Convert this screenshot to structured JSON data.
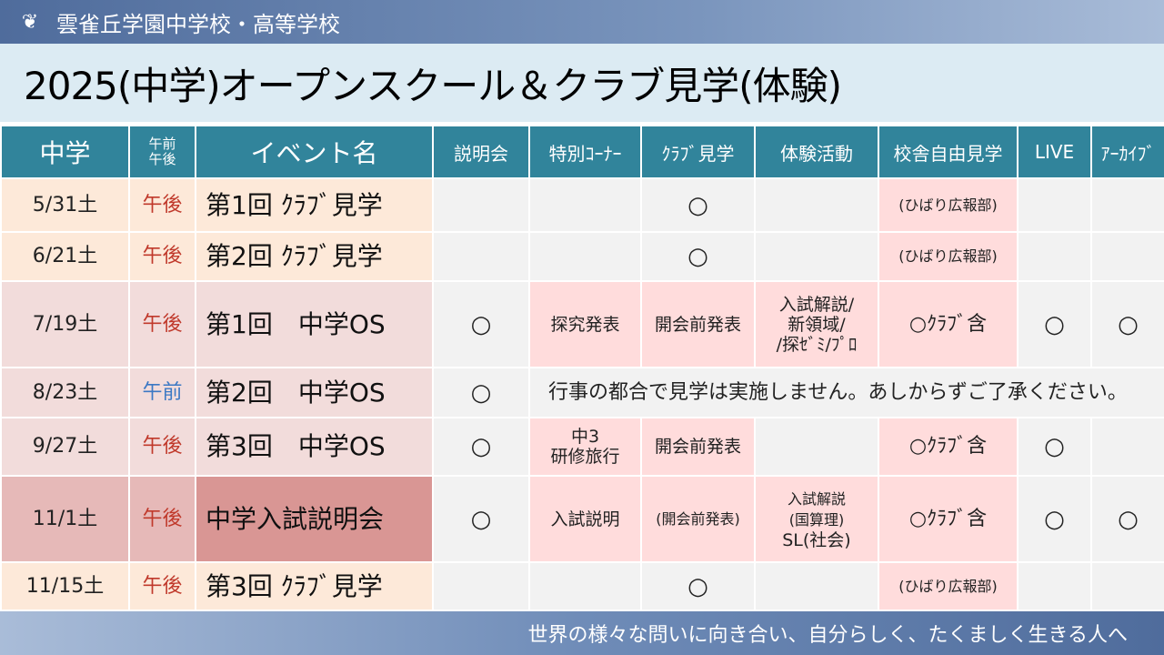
{
  "header": {
    "school": "雲雀丘学園中学校・高等学校",
    "logo_text": "雲"
  },
  "title": "2025(中学)オープンスクール＆クラブ見学(体験)",
  "columns": [
    "中学",
    "午前午後",
    "イベント名",
    "説明会",
    "特別ｺｰﾅｰ",
    "ｸﾗﾌﾞ見学",
    "体験活動",
    "校舎自由見学",
    "LIVE",
    "ｱｰｶｲﾌﾞ"
  ],
  "columns_ampm": [
    "午前",
    "午後"
  ],
  "rows": [
    {
      "date": "5/31土",
      "ampm": "午後",
      "name": "第1回 ｸﾗﾌﾞ見学",
      "setsumei": "",
      "special": "",
      "club": "○",
      "taiken": "",
      "kousha": "(ひばり広報部)",
      "live": "",
      "archive": ""
    },
    {
      "date": "6/21土",
      "ampm": "午後",
      "name": "第2回 ｸﾗﾌﾞ見学",
      "setsumei": "",
      "special": "",
      "club": "○",
      "taiken": "",
      "kousha": "(ひばり広報部)",
      "live": "",
      "archive": ""
    },
    {
      "date": "7/19土",
      "ampm": "午後",
      "name": "第1回　中学OS",
      "setsumei": "○",
      "special": "探究発表",
      "club": "開会前発表",
      "taiken": [
        "入試解説/",
        "新領域/",
        "/探ｾﾞﾐ/ﾌﾟﾛ"
      ],
      "kousha": "○ｸﾗﾌﾞ含",
      "live": "○",
      "archive": "○"
    },
    {
      "date": "8/23土",
      "ampm": "午前",
      "name": "第2回　中学OS",
      "setsumei": "○",
      "notice": "行事の都合で見学は実施しません。あしからずご了承ください。"
    },
    {
      "date": "9/27土",
      "ampm": "午後",
      "name": "第3回　中学OS",
      "setsumei": "○",
      "special": [
        "中3",
        "研修旅行"
      ],
      "club": "開会前発表",
      "taiken": "",
      "kousha": "○ｸﾗﾌﾞ含",
      "live": "○",
      "archive": ""
    },
    {
      "date": "11/1土",
      "ampm": "午後",
      "name": "中学入試説明会",
      "setsumei": "○",
      "special": "入試説明",
      "club": "(開会前発表)",
      "taiken": [
        "入試解説",
        "(国算理)",
        "SL(社会)"
      ],
      "kousha": "○ｸﾗﾌﾞ含",
      "live": "○",
      "archive": "○"
    },
    {
      "date": "11/15土",
      "ampm": "午後",
      "name": "第3回 ｸﾗﾌﾞ見学",
      "setsumei": "",
      "special": "",
      "club": "○",
      "taiken": "",
      "kousha": "(ひばり広報部)",
      "live": "",
      "archive": ""
    }
  ],
  "footer": {
    "motto": "世界の様々な問いに向き合い、自分らしく、たくましく生きる人へ"
  },
  "colors": {
    "header": "#31849b",
    "pm": "#c0392b",
    "am": "#3b78c4",
    "highlight": "#ffdcdc"
  }
}
